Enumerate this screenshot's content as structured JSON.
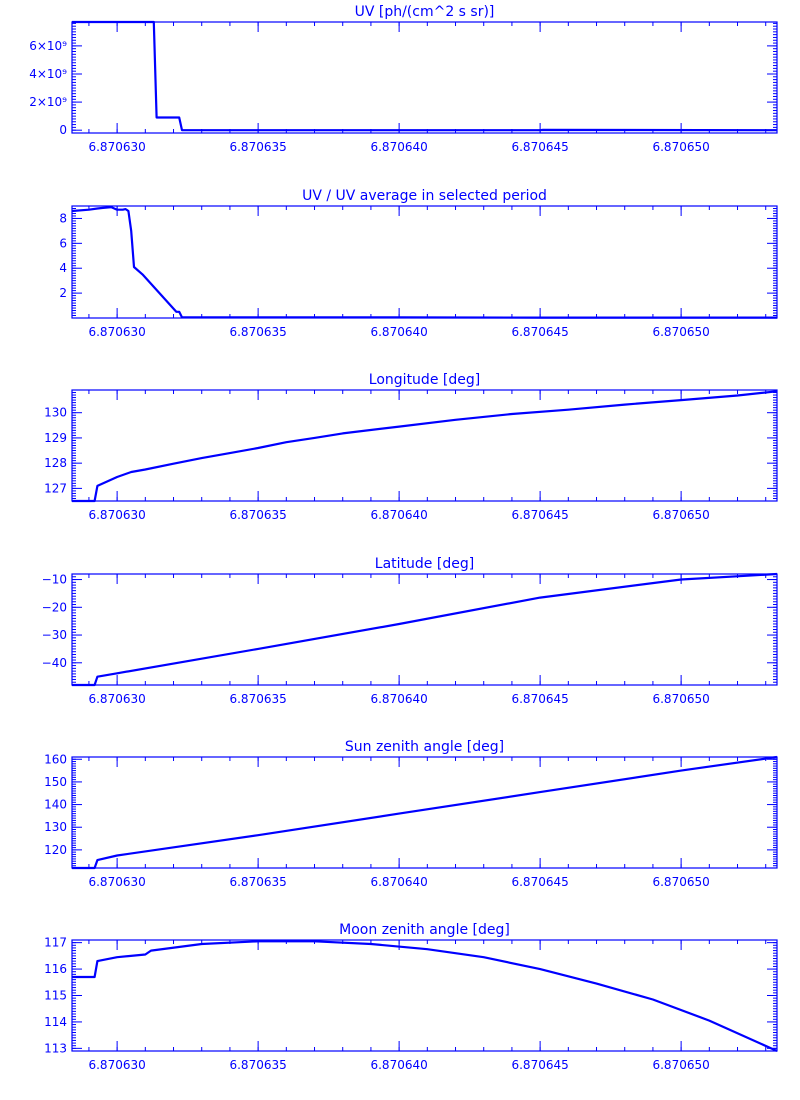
{
  "chart_data": [
    {
      "type": "line",
      "title": "UV [ph/(cm^2 s sr)]",
      "xlim": [
        6.8706284,
        6.8706534
      ],
      "ylim": [
        -200000000,
        7700000000
      ],
      "x_ticks": [
        6.87063,
        6.870635,
        6.87064,
        6.870645,
        6.87065
      ],
      "x_tick_labels": [
        "6.870630",
        "6.870635",
        "6.870640",
        "6.870645",
        "6.870650"
      ],
      "y_ticks": [
        0,
        2000000000,
        4000000000,
        6000000000
      ],
      "y_tick_labels": [
        "0",
        "2×10⁹",
        "4×10⁹",
        "6×10⁹"
      ],
      "series": [
        {
          "x": [
            6.8706284,
            6.8706313,
            6.8706314,
            6.8706322,
            6.8706323,
            6.870645,
            6.8706451,
            6.8706534
          ],
          "y": [
            7700000000,
            7700000000,
            900000000,
            900000000,
            0,
            0,
            20000000,
            0
          ]
        }
      ]
    },
    {
      "type": "line",
      "title": "UV / UV average in selected period",
      "xlim": [
        6.8706284,
        6.8706534
      ],
      "ylim": [
        0,
        9
      ],
      "x_ticks": [
        6.87063,
        6.870635,
        6.87064,
        6.870645,
        6.87065
      ],
      "x_tick_labels": [
        "6.870630",
        "6.870635",
        "6.870640",
        "6.870645",
        "6.870650"
      ],
      "y_ticks": [
        2,
        4,
        6,
        8
      ],
      "y_tick_labels": [
        "2",
        "4",
        "6",
        "8"
      ],
      "series": [
        {
          "x": [
            6.8706284,
            6.870629,
            6.8706293,
            6.8706295,
            6.8706298,
            6.87063,
            6.8706302,
            6.8706303,
            6.8706304,
            6.8706305,
            6.8706306,
            6.8706309,
            6.8706321,
            6.8706322,
            6.8706323,
            6.870635,
            6.87064,
            6.870645,
            6.8706534
          ],
          "y": [
            8.6,
            8.7,
            8.8,
            8.85,
            8.9,
            8.7,
            8.7,
            8.75,
            8.6,
            7.0,
            4.1,
            3.5,
            0.5,
            0.5,
            0.05,
            0.05,
            0.05,
            0.03,
            0.03
          ]
        }
      ]
    },
    {
      "type": "line",
      "title": "Longitude [deg]",
      "xlim": [
        6.8706284,
        6.8706534
      ],
      "ylim": [
        126.5,
        130.9
      ],
      "x_ticks": [
        6.87063,
        6.870635,
        6.87064,
        6.870645,
        6.87065
      ],
      "x_tick_labels": [
        "6.870630",
        "6.870635",
        "6.870640",
        "6.870645",
        "6.870650"
      ],
      "y_ticks": [
        127,
        128,
        129,
        130
      ],
      "y_tick_labels": [
        "127",
        "128",
        "129",
        "130"
      ],
      "series": [
        {
          "x": [
            6.8706284,
            6.8706292,
            6.8706293,
            6.87063,
            6.8706305,
            6.870631,
            6.870632,
            6.870633,
            6.870634,
            6.870635,
            6.870636,
            6.870637,
            6.870638,
            6.87064,
            6.870642,
            6.870644,
            6.870646,
            6.870648,
            6.87065,
            6.870652,
            6.8706534
          ],
          "y": [
            126.5,
            126.5,
            127.1,
            127.45,
            127.65,
            127.75,
            127.98,
            128.2,
            128.4,
            128.6,
            128.83,
            129.0,
            129.18,
            129.45,
            129.72,
            129.95,
            130.12,
            130.32,
            130.5,
            130.68,
            130.85
          ]
        }
      ]
    },
    {
      "type": "line",
      "title": "Latitude [deg]",
      "xlim": [
        6.8706284,
        6.8706534
      ],
      "ylim": [
        -48,
        -8
      ],
      "x_ticks": [
        6.87063,
        6.870635,
        6.87064,
        6.870645,
        6.87065
      ],
      "x_tick_labels": [
        "6.870630",
        "6.870635",
        "6.870640",
        "6.870645",
        "6.870650"
      ],
      "y_ticks": [
        -40,
        -30,
        -20,
        -10
      ],
      "y_tick_labels": [
        "−40",
        "−30",
        "−20",
        "−10"
      ],
      "series": [
        {
          "x": [
            6.8706284,
            6.8706292,
            6.8706293,
            6.87063,
            6.870635,
            6.87064,
            6.870645,
            6.87065,
            6.8706534
          ],
          "y": [
            -48,
            -48,
            -45,
            -43.8,
            -35,
            -26,
            -16.5,
            -10,
            -8
          ]
        }
      ]
    },
    {
      "type": "line",
      "title": "Sun zenith angle [deg]",
      "xlim": [
        6.8706284,
        6.8706534
      ],
      "ylim": [
        112,
        161
      ],
      "x_ticks": [
        6.87063,
        6.870635,
        6.87064,
        6.870645,
        6.87065
      ],
      "x_tick_labels": [
        "6.870630",
        "6.870635",
        "6.870640",
        "6.870645",
        "6.870650"
      ],
      "y_ticks": [
        120,
        130,
        140,
        150,
        160
      ],
      "y_tick_labels": [
        "120",
        "130",
        "140",
        "150",
        "160"
      ],
      "series": [
        {
          "x": [
            6.8706284,
            6.8706292,
            6.8706293,
            6.87063,
            6.870635,
            6.87064,
            6.870645,
            6.87065,
            6.8706534
          ],
          "y": [
            112,
            112,
            115.5,
            117.5,
            126.5,
            136,
            145.5,
            155,
            161
          ]
        }
      ]
    },
    {
      "type": "line",
      "title": "Moon zenith angle [deg]",
      "xlim": [
        6.8706284,
        6.8706534
      ],
      "ylim": [
        112.9,
        117.1
      ],
      "x_ticks": [
        6.87063,
        6.870635,
        6.87064,
        6.870645,
        6.87065
      ],
      "x_tick_labels": [
        "6.870630",
        "6.870635",
        "6.870640",
        "6.870645",
        "6.870650"
      ],
      "y_ticks": [
        113,
        114,
        115,
        116,
        117
      ],
      "y_tick_labels": [
        "113",
        "114",
        "115",
        "116",
        "117"
      ],
      "series": [
        {
          "x": [
            6.8706284,
            6.8706292,
            6.8706293,
            6.87063,
            6.870631,
            6.8706312,
            6.870633,
            6.870635,
            6.870637,
            6.870639,
            6.870641,
            6.870643,
            6.870645,
            6.870647,
            6.870649,
            6.870651,
            6.8706534
          ],
          "y": [
            115.7,
            115.7,
            116.3,
            116.45,
            116.55,
            116.7,
            116.95,
            117.05,
            117.05,
            116.95,
            116.75,
            116.45,
            116.0,
            115.45,
            114.85,
            114.05,
            112.9
          ]
        }
      ]
    }
  ]
}
